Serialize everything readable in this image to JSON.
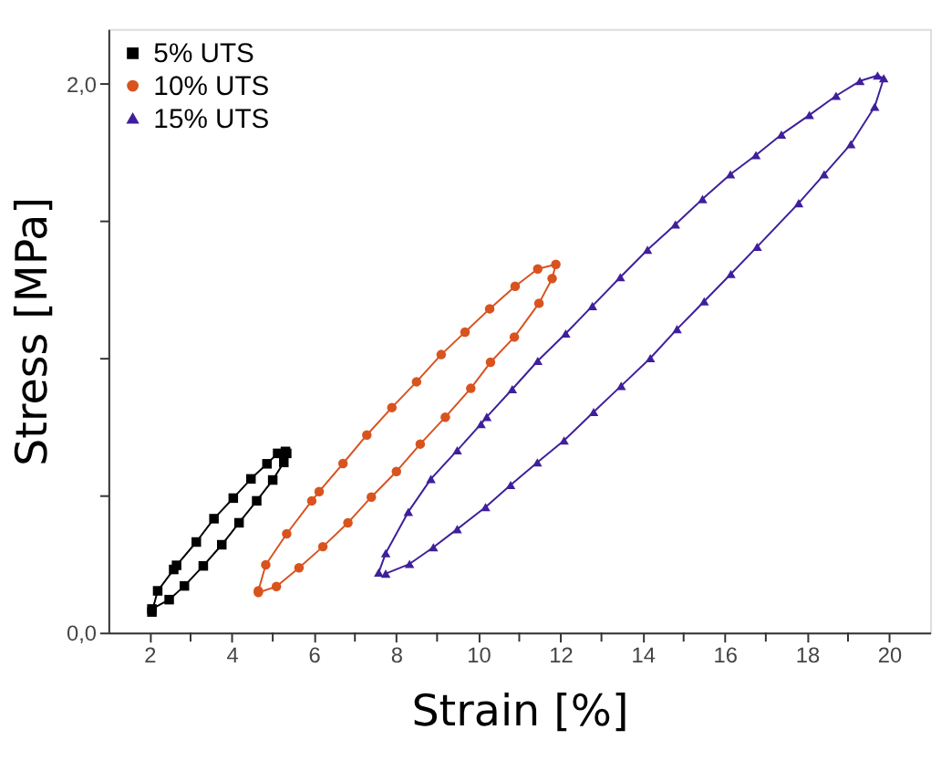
{
  "chart_data": {
    "type": "line",
    "xlabel": "Strain [%]",
    "ylabel": "Stress [MPa]",
    "legend": "top left",
    "grid": false,
    "xlim": [
      1,
      21
    ],
    "ylim": [
      0,
      2.2
    ],
    "xticks": [
      2,
      {
        "value": 3,
        "label": null
      },
      4,
      {
        "value": 5,
        "label": null
      },
      6,
      {
        "value": 7,
        "label": null
      },
      8,
      {
        "value": 9,
        "label": null
      },
      10,
      {
        "value": 11,
        "label": null
      },
      12,
      {
        "value": 13,
        "label": null
      },
      14,
      {
        "value": 15,
        "label": null
      },
      16,
      {
        "value": 17,
        "label": null
      },
      18,
      {
        "value": 19,
        "label": null
      },
      20
    ],
    "yticks": [
      {
        "value": 0,
        "label": "0,0"
      },
      {
        "value": 0.5,
        "label": null
      },
      {
        "value": 1,
        "label": null
      },
      {
        "value": 1.5,
        "label": null
      },
      {
        "value": 2,
        "label": "2,0"
      }
    ],
    "series": [
      {
        "name": "5% UTS",
        "color": "#000000",
        "marker": "square",
        "x": [
          2.06,
          2.2,
          2.59,
          2.66,
          3.14,
          3.57,
          4.04,
          4.47,
          4.86,
          5.12,
          5.31,
          5.34,
          5.27,
          5.0,
          4.61,
          4.18,
          3.76,
          3.31,
          2.85,
          2.48,
          2.06
        ],
        "values": [
          0.075,
          0.152,
          0.23,
          0.245,
          0.33,
          0.415,
          0.49,
          0.56,
          0.615,
          0.653,
          0.66,
          0.653,
          0.62,
          0.556,
          0.48,
          0.4,
          0.32,
          0.243,
          0.17,
          0.12,
          0.086
        ]
      },
      {
        "name": "10% UTS",
        "color": "#d9531e",
        "marker": "circle",
        "x": [
          4.65,
          4.83,
          5.34,
          5.95,
          6.13,
          6.71,
          7.29,
          7.9,
          8.5,
          9.1,
          9.68,
          10.28,
          10.9,
          11.45,
          11.89,
          11.8,
          11.48,
          10.88,
          10.3,
          9.82,
          9.2,
          8.59,
          8.01,
          7.4,
          6.83,
          6.22,
          5.64,
          5.09,
          4.65
        ],
        "values": [
          0.152,
          0.247,
          0.36,
          0.48,
          0.514,
          0.616,
          0.72,
          0.82,
          0.914,
          1.013,
          1.095,
          1.18,
          1.262,
          1.325,
          1.342,
          1.29,
          1.2,
          1.077,
          0.985,
          0.89,
          0.785,
          0.687,
          0.587,
          0.494,
          0.4,
          0.313,
          0.236,
          0.168,
          0.146
        ]
      },
      {
        "name": "15% UTS",
        "color": "#3f1f9b",
        "marker": "triangle",
        "x": [
          7.58,
          7.75,
          8.3,
          8.85,
          9.49,
          10.07,
          10.21,
          10.83,
          11.45,
          12.13,
          12.78,
          13.46,
          14.12,
          14.8,
          15.46,
          16.14,
          16.76,
          17.38,
          18.06,
          18.71,
          19.29,
          19.72,
          19.87,
          19.65,
          19.07,
          18.42,
          17.8,
          16.79,
          16.15,
          15.5,
          14.84,
          14.19,
          13.48,
          12.81,
          12.09,
          11.44,
          10.79,
          10.18,
          9.49,
          8.91,
          8.33,
          7.75
        ],
        "values": [
          0.219,
          0.289,
          0.44,
          0.56,
          0.664,
          0.76,
          0.786,
          0.887,
          0.99,
          1.09,
          1.19,
          1.295,
          1.395,
          1.487,
          1.58,
          1.67,
          1.74,
          1.815,
          1.886,
          1.956,
          2.01,
          2.03,
          2.02,
          1.916,
          1.78,
          1.67,
          1.565,
          1.406,
          1.307,
          1.207,
          1.106,
          1.0,
          0.899,
          0.804,
          0.7,
          0.62,
          0.538,
          0.457,
          0.377,
          0.311,
          0.25,
          0.215
        ]
      }
    ]
  }
}
